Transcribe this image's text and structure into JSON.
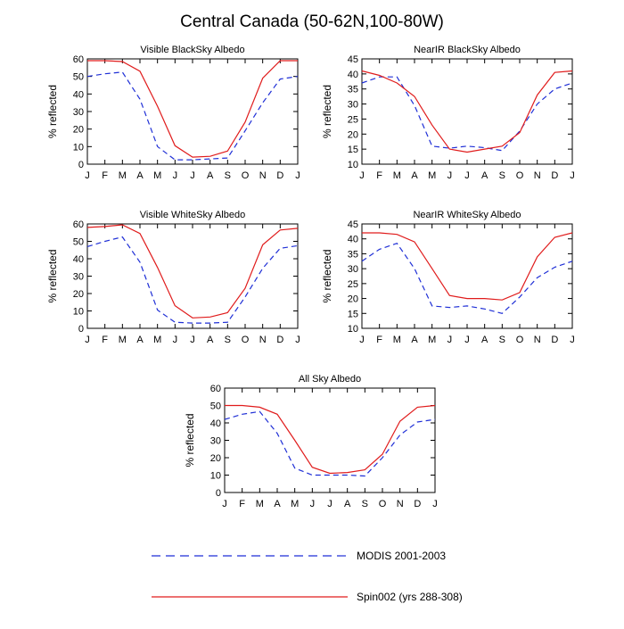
{
  "title": "Central Canada (50-62N,100-80W)",
  "months": [
    "J",
    "F",
    "M",
    "A",
    "M",
    "J",
    "J",
    "A",
    "S",
    "O",
    "N",
    "D",
    "J"
  ],
  "colors": {
    "modis": "#1f2fd6",
    "spin": "#e01c1c"
  },
  "legend": [
    {
      "label": "MODIS 2001-2003",
      "style": "dashed",
      "color": "#1f2fd6"
    },
    {
      "label": "Spin002 (yrs 288-308)",
      "style": "solid",
      "color": "#e01c1c"
    }
  ],
  "chart_data": [
    {
      "type": "line",
      "title": "Visible BlackSky Albedo",
      "ylabel": "% reflected",
      "ylim": [
        0,
        60
      ],
      "yticks": [
        0,
        10,
        20,
        30,
        40,
        50,
        60
      ],
      "categories": [
        "J",
        "F",
        "M",
        "A",
        "M",
        "J",
        "J",
        "A",
        "S",
        "O",
        "N",
        "D",
        "J"
      ],
      "series": [
        {
          "name": "MODIS 2001-2003",
          "values": [
            50,
            51.5,
            52.5,
            37,
            10,
            2.5,
            2.5,
            3,
            3.5,
            19,
            35,
            48.5,
            50
          ]
        },
        {
          "name": "Spin002 (yrs 288-308)",
          "values": [
            59,
            59,
            58.5,
            53,
            33,
            10.5,
            4,
            4.5,
            7.5,
            24,
            49,
            59,
            59
          ]
        }
      ]
    },
    {
      "type": "line",
      "title": "NearIR BlackSky Albedo",
      "ylabel": "% reflected",
      "ylim": [
        10,
        45
      ],
      "yticks": [
        10,
        15,
        20,
        25,
        30,
        35,
        40,
        45
      ],
      "categories": [
        "J",
        "F",
        "M",
        "A",
        "M",
        "J",
        "J",
        "A",
        "S",
        "O",
        "N",
        "D",
        "J"
      ],
      "series": [
        {
          "name": "MODIS 2001-2003",
          "values": [
            37,
            39,
            39,
            29.5,
            16,
            15.3,
            16,
            15.5,
            14.5,
            21,
            30,
            35,
            37
          ]
        },
        {
          "name": "Spin002 (yrs 288-308)",
          "values": [
            41,
            39.5,
            37,
            32.5,
            23,
            15,
            14,
            15,
            16,
            20.5,
            33,
            40.5,
            41
          ]
        }
      ]
    },
    {
      "type": "line",
      "title": "Visible WhiteSky Albedo",
      "ylabel": "% reflected",
      "ylim": [
        0,
        60
      ],
      "yticks": [
        0,
        10,
        20,
        30,
        40,
        50,
        60
      ],
      "categories": [
        "J",
        "F",
        "M",
        "A",
        "M",
        "J",
        "J",
        "A",
        "S",
        "O",
        "N",
        "D",
        "J"
      ],
      "series": [
        {
          "name": "MODIS 2001-2003",
          "values": [
            47,
            50,
            52.5,
            38,
            10.5,
            3.5,
            3,
            3,
            3.5,
            18,
            34.5,
            46,
            47.5
          ]
        },
        {
          "name": "Spin002 (yrs 288-308)",
          "values": [
            58,
            58.5,
            59.5,
            54.5,
            35,
            13,
            6,
            6.5,
            9,
            23,
            48,
            56.5,
            57.5
          ]
        }
      ]
    },
    {
      "type": "line",
      "title": "NearIR WhiteSky Albedo",
      "ylabel": "% reflected",
      "ylim": [
        10,
        45
      ],
      "yticks": [
        10,
        15,
        20,
        25,
        30,
        35,
        40,
        45
      ],
      "categories": [
        "J",
        "F",
        "M",
        "A",
        "M",
        "J",
        "J",
        "A",
        "S",
        "O",
        "N",
        "D",
        "J"
      ],
      "series": [
        {
          "name": "MODIS 2001-2003",
          "values": [
            32.5,
            36.5,
            38.5,
            30,
            17.5,
            17,
            17.5,
            16.5,
            15,
            20.5,
            27,
            30.5,
            32.5
          ]
        },
        {
          "name": "Spin002 (yrs 288-308)",
          "values": [
            42,
            42,
            41.5,
            39,
            30,
            21,
            20,
            20,
            19.5,
            22,
            34,
            40.5,
            42
          ]
        }
      ]
    },
    {
      "type": "line",
      "title": "All Sky Albedo",
      "ylabel": "% reflected",
      "ylim": [
        0,
        60
      ],
      "yticks": [
        0,
        10,
        20,
        30,
        40,
        50,
        60
      ],
      "categories": [
        "J",
        "F",
        "M",
        "A",
        "M",
        "J",
        "J",
        "A",
        "S",
        "O",
        "N",
        "D",
        "J"
      ],
      "series": [
        {
          "name": "MODIS 2001-2003",
          "values": [
            42,
            45,
            46.5,
            34,
            14,
            10,
            10,
            10,
            9.5,
            20,
            33,
            40.5,
            42
          ]
        },
        {
          "name": "Spin002 (yrs 288-308)",
          "values": [
            50,
            50,
            49,
            45,
            30,
            14.5,
            11,
            11.5,
            13,
            22,
            41,
            49,
            50
          ]
        }
      ]
    }
  ]
}
